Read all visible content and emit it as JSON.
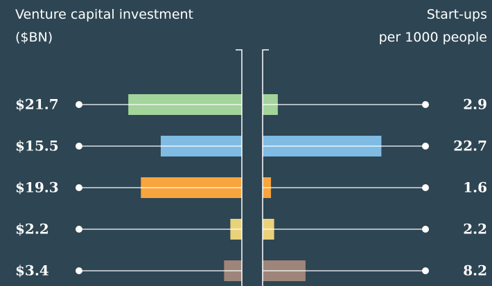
{
  "chart_data": [
    {
      "type": "bar",
      "orientation": "left",
      "title": [
        "Venture capital investment",
        "($BN)"
      ],
      "values": [
        21.7,
        15.5,
        19.3,
        2.2,
        3.4
      ],
      "value_labels": [
        "$21.7",
        "$15.5",
        "$19.3",
        "$2.2",
        "$3.4"
      ],
      "colors": [
        "#a3d49b",
        "#80bbe3",
        "#f7a53c",
        "#ead27a",
        "#9e857a"
      ],
      "xlim": [
        0,
        30
      ]
    },
    {
      "type": "bar",
      "orientation": "right",
      "title": [
        "Start-ups",
        "per 1000 people"
      ],
      "values": [
        2.9,
        22.7,
        1.6,
        2.2,
        8.2
      ],
      "colors": [
        "#a3d49b",
        "#80bbe3",
        "#f7a53c",
        "#ead27a",
        "#9e857a"
      ],
      "xlim": [
        0,
        30
      ]
    }
  ]
}
